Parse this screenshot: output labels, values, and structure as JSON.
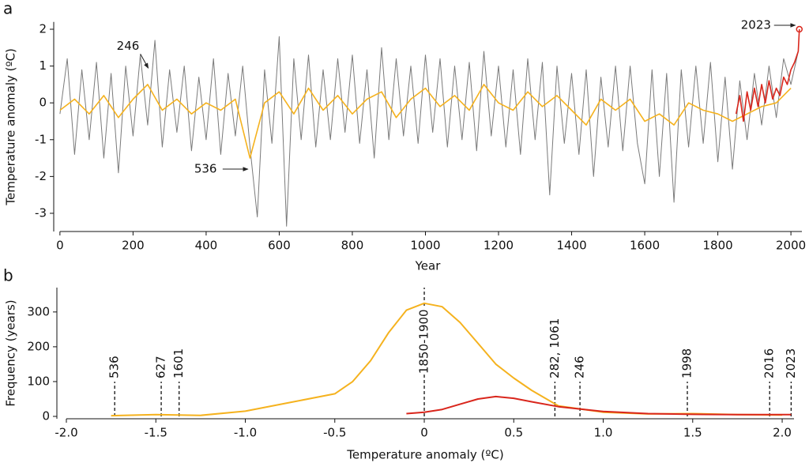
{
  "chart_data": [
    {
      "type": "line",
      "panel": "a",
      "xlabel": "Year",
      "ylabel": "Temperature anomaly (ºC)",
      "xlim": [
        -17,
        2030
      ],
      "ylim": [
        -3.4,
        2.2
      ],
      "xticks": [
        0,
        200,
        400,
        600,
        800,
        1000,
        1200,
        1400,
        1600,
        1800,
        2000
      ],
      "yticks": [
        -3,
        -2,
        -1,
        0,
        1,
        2
      ],
      "series": [
        {
          "color": "#7a7a7a",
          "x": [
            0,
            20,
            40,
            60,
            80,
            100,
            120,
            140,
            160,
            180,
            200,
            220,
            240,
            260,
            280,
            300,
            320,
            340,
            360,
            380,
            400,
            420,
            440,
            460,
            480,
            500,
            520,
            540,
            560,
            580,
            600,
            620,
            640,
            660,
            680,
            700,
            720,
            740,
            760,
            780,
            800,
            820,
            840,
            860,
            880,
            900,
            920,
            940,
            960,
            980,
            1000,
            1020,
            1040,
            1060,
            1080,
            1100,
            1120,
            1140,
            1160,
            1180,
            1200,
            1220,
            1240,
            1260,
            1280,
            1300,
            1320,
            1340,
            1360,
            1380,
            1400,
            1420,
            1440,
            1460,
            1480,
            1500,
            1520,
            1540,
            1560,
            1580,
            1600,
            1620,
            1640,
            1660,
            1680,
            1700,
            1720,
            1740,
            1760,
            1780,
            1800,
            1820,
            1840,
            1860,
            1880,
            1900,
            1920,
            1940,
            1960,
            1980,
            2000,
            2020
          ],
          "values": [
            -0.3,
            1.2,
            -1.4,
            0.9,
            -1.0,
            1.1,
            -1.5,
            0.8,
            -1.9,
            1.0,
            -0.9,
            1.3,
            -0.6,
            1.7,
            -1.2,
            0.9,
            -0.8,
            1.0,
            -1.3,
            0.7,
            -1.0,
            1.2,
            -1.4,
            0.8,
            -0.9,
            1.0,
            -1.2,
            -3.1,
            0.9,
            -1.1,
            1.8,
            -3.35,
            1.2,
            -1.0,
            1.3,
            -1.2,
            0.9,
            -1.0,
            1.2,
            -0.8,
            1.3,
            -1.1,
            0.9,
            -1.5,
            1.5,
            -1.0,
            1.2,
            -0.9,
            1.0,
            -1.1,
            1.3,
            -0.8,
            1.2,
            -1.2,
            1.0,
            -1.0,
            1.1,
            -1.3,
            1.4,
            -0.9,
            1.0,
            -1.2,
            0.9,
            -1.4,
            1.2,
            -1.0,
            1.1,
            -2.5,
            1.0,
            -1.1,
            0.8,
            -1.4,
            0.9,
            -2.0,
            0.7,
            -1.2,
            1.0,
            -1.3,
            1.0,
            -1.1,
            -2.2,
            0.9,
            -2.0,
            0.8,
            -2.7,
            0.9,
            -1.2,
            1.0,
            -1.1,
            1.1,
            -1.6,
            0.7,
            -1.8,
            0.6,
            -1.0,
            0.8,
            -0.6,
            1.0,
            -0.4,
            1.2,
            0.5,
            1.4
          ]
        },
        {
          "color": "#f5b21e",
          "x": [
            0,
            40,
            80,
            120,
            160,
            200,
            240,
            280,
            320,
            360,
            400,
            440,
            480,
            520,
            560,
            600,
            640,
            680,
            720,
            760,
            800,
            840,
            880,
            920,
            960,
            1000,
            1040,
            1080,
            1120,
            1160,
            1200,
            1240,
            1280,
            1320,
            1360,
            1400,
            1440,
            1480,
            1520,
            1560,
            1600,
            1640,
            1680,
            1720,
            1760,
            1800,
            1840,
            1880,
            1920,
            1960,
            2000
          ],
          "values": [
            -0.2,
            0.1,
            -0.3,
            0.2,
            -0.4,
            0.1,
            0.5,
            -0.2,
            0.1,
            -0.3,
            0.0,
            -0.2,
            0.1,
            -1.5,
            0.0,
            0.3,
            -0.3,
            0.4,
            -0.2,
            0.2,
            -0.3,
            0.1,
            0.3,
            -0.4,
            0.1,
            0.4,
            -0.1,
            0.2,
            -0.2,
            0.5,
            0.0,
            -0.2,
            0.3,
            -0.1,
            0.2,
            -0.2,
            -0.6,
            0.1,
            -0.2,
            0.1,
            -0.5,
            -0.3,
            -0.6,
            0.0,
            -0.2,
            -0.3,
            -0.5,
            -0.3,
            -0.1,
            0.0,
            0.4
          ]
        },
        {
          "color": "#d9261c",
          "x": [
            1850,
            1860,
            1870,
            1880,
            1890,
            1900,
            1910,
            1920,
            1930,
            1940,
            1950,
            1960,
            1970,
            1980,
            1990,
            2000,
            2010,
            2020,
            2023
          ],
          "values": [
            -0.3,
            0.2,
            -0.5,
            0.3,
            -0.2,
            0.4,
            -0.1,
            0.5,
            0.0,
            0.6,
            0.1,
            0.4,
            0.2,
            0.7,
            0.5,
            0.9,
            1.1,
            1.4,
            2.0
          ]
        }
      ],
      "annotations": [
        {
          "text": "246",
          "x": 246,
          "y": 0.9
        },
        {
          "text": "536",
          "x": 536,
          "y": -1.8
        },
        {
          "text": "2023",
          "x": 2023,
          "y": 2.0
        }
      ]
    },
    {
      "type": "line",
      "panel": "b",
      "xlabel": "Temperature anomaly (ºC)",
      "ylabel": "Frequency (years)",
      "xlim": [
        -2.053,
        2.066
      ],
      "ylim": [
        0,
        370
      ],
      "xticks": [
        {
          "value": -2,
          "label": "-2.0"
        },
        {
          "value": -1.5,
          "label": "-1.5"
        },
        {
          "value": -1,
          "label": "-1.0"
        },
        {
          "value": -0.5,
          "label": "-0.5"
        },
        0,
        0.5,
        {
          "value": 1,
          "label": "1.0"
        },
        1.5,
        {
          "value": 2,
          "label": "2.0"
        }
      ],
      "yticks": [
        0,
        100,
        200,
        300
      ],
      "series": [
        {
          "color": "#f5b21e",
          "x": [
            -1.75,
            -1.5,
            -1.25,
            -1.0,
            -0.75,
            -0.5,
            -0.4,
            -0.3,
            -0.2,
            -0.1,
            0,
            0.1,
            0.2,
            0.3,
            0.4,
            0.5,
            0.6,
            0.75,
            1.0,
            1.25,
            1.5,
            1.75,
            2.0
          ],
          "values": [
            2,
            5,
            3,
            15,
            40,
            65,
            100,
            160,
            240,
            305,
            325,
            315,
            270,
            210,
            150,
            110,
            75,
            30,
            12,
            7,
            8,
            5,
            4
          ]
        },
        {
          "color": "#d9261c",
          "x": [
            -0.1,
            0,
            0.1,
            0.2,
            0.3,
            0.4,
            0.5,
            0.6,
            0.75,
            1.0,
            1.25,
            1.5,
            1.75,
            2.05
          ],
          "values": [
            8,
            12,
            20,
            35,
            50,
            57,
            52,
            42,
            28,
            14,
            8,
            6,
            5,
            5
          ]
        }
      ],
      "markers": [
        {
          "label": "536",
          "x": -1.73
        },
        {
          "label": "627",
          "x": -1.47
        },
        {
          "label": "1601",
          "x": -1.37
        },
        {
          "label": "1850-1900",
          "x": 0
        },
        {
          "label": "282, 1061",
          "x": 0.73
        },
        {
          "label": "246",
          "x": 0.87
        },
        {
          "label": "1998",
          "x": 1.47
        },
        {
          "label": "2016",
          "x": 1.93
        },
        {
          "label": "2023",
          "x": 2.05
        }
      ]
    }
  ]
}
